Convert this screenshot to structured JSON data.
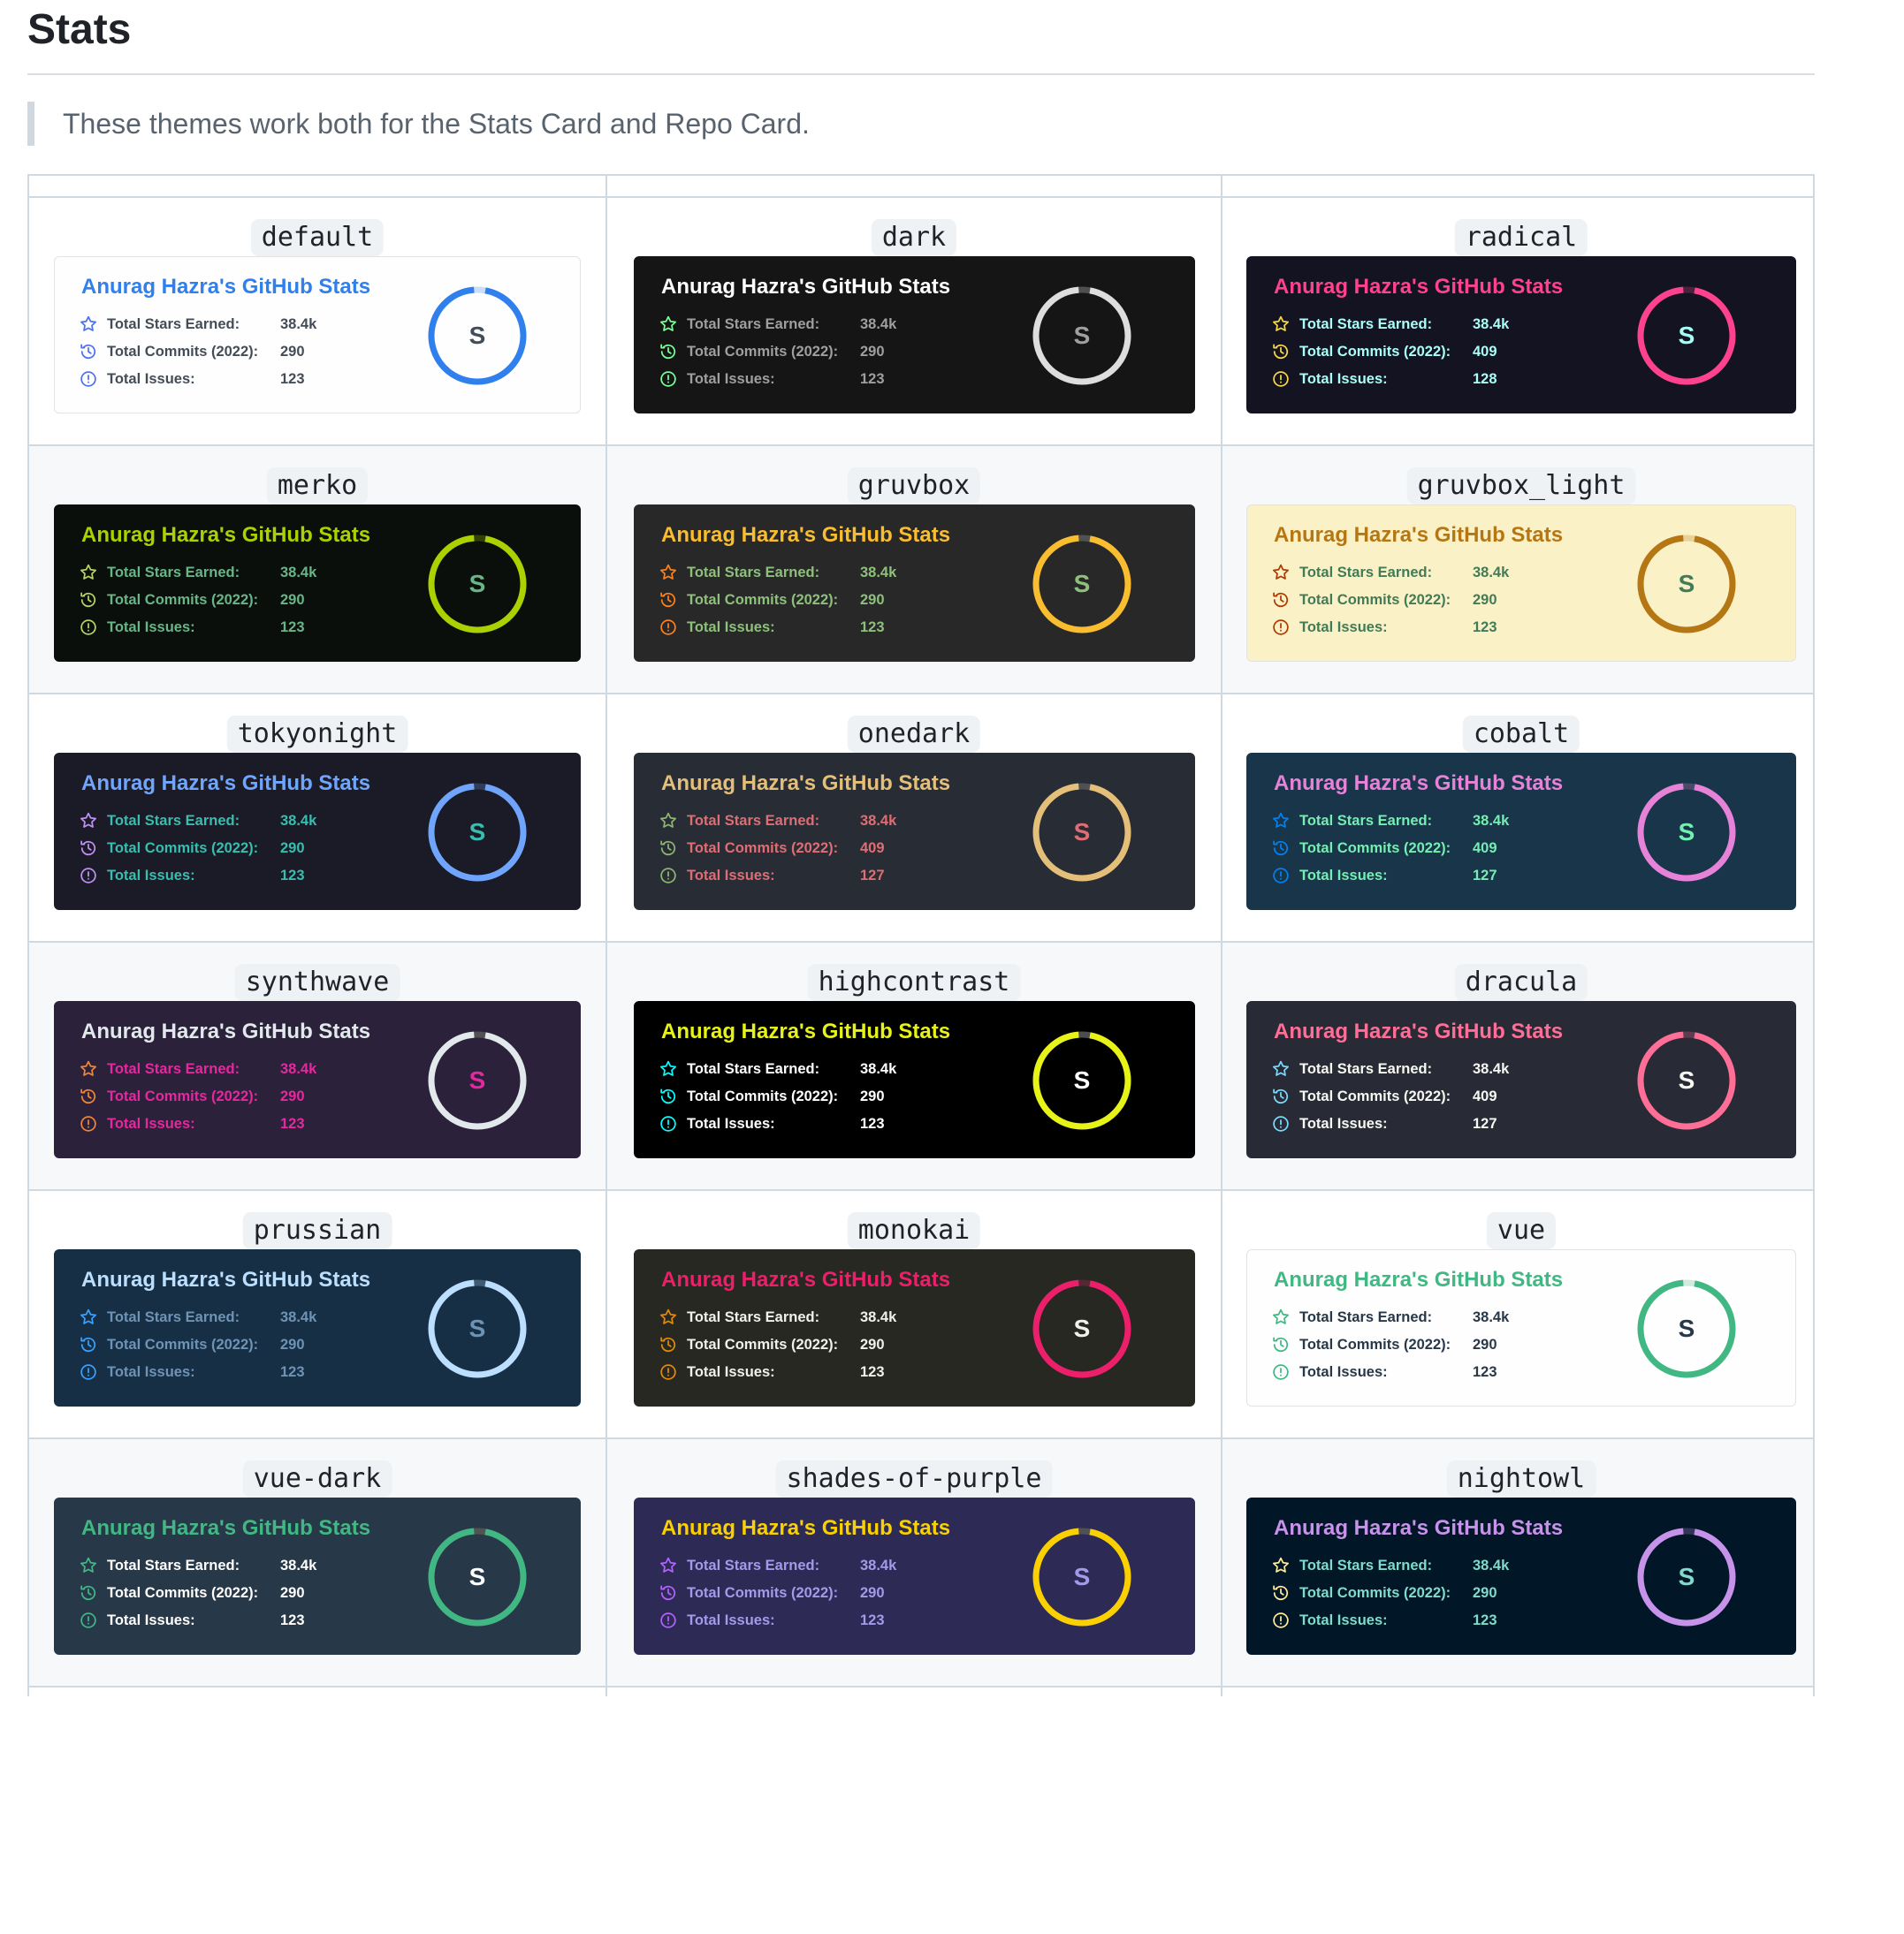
{
  "heading": "Stats",
  "note": "These themes work both for the Stats Card and Repo Card.",
  "card_title": "Anurag Hazra's GitHub Stats",
  "rank_letter": "S",
  "stat_labels": {
    "stars": "Total Stars Earned:",
    "commits": "Total Commits (2022):",
    "issues": "Total Issues:"
  },
  "themes": [
    {
      "name": "default",
      "bg": "#fffefe",
      "border": "#e4e2e2",
      "title": "#2f80ed",
      "text": "#434d58",
      "icon": "#4c71f2",
      "ring": "#2f80ed",
      "track": "#2f80ed",
      "rank": "#434d58",
      "stars": "38.4k",
      "commits": "290",
      "issues": "123"
    },
    {
      "name": "dark",
      "bg": "#151515",
      "border": "#151515",
      "title": "#ffffff",
      "text": "#9f9f9f",
      "icon": "#79ff97",
      "ring": "#dddddd",
      "track": "#555555",
      "rank": "#9f9f9f",
      "stars": "38.4k",
      "commits": "290",
      "issues": "123"
    },
    {
      "name": "radical",
      "bg": "#141321",
      "border": "#141321",
      "title": "#fe428e",
      "text": "#a9fef7",
      "icon": "#f8d847",
      "ring": "#fe428e",
      "track": "#fe428e",
      "rank": "#a9fef7",
      "stars": "38.4k",
      "commits": "409",
      "issues": "128"
    },
    {
      "name": "merko",
      "bg": "#0a0f0b",
      "border": "#0a0f0b",
      "title": "#abd200",
      "text": "#68b587",
      "icon": "#b7d364",
      "ring": "#abd200",
      "track": "#abd200",
      "rank": "#68b587",
      "stars": "38.4k",
      "commits": "290",
      "issues": "123"
    },
    {
      "name": "gruvbox",
      "bg": "#282828",
      "border": "#282828",
      "title": "#fabd2f",
      "text": "#8ec07c",
      "icon": "#fe8019",
      "ring": "#fabd2f",
      "track": "#555555",
      "rank": "#8ec07c",
      "stars": "38.4k",
      "commits": "290",
      "issues": "123"
    },
    {
      "name": "gruvbox_light",
      "bg": "#fbf1c7",
      "border": "#e4e2e2",
      "title": "#b57614",
      "text": "#427b58",
      "icon": "#af3a03",
      "ring": "#b57614",
      "track": "#b57614",
      "rank": "#427b58",
      "stars": "38.4k",
      "commits": "290",
      "issues": "123"
    },
    {
      "name": "tokyonight",
      "bg": "#1a1b27",
      "border": "#1a1b27",
      "title": "#70a5fd",
      "text": "#38bdae",
      "icon": "#bf91f3",
      "ring": "#70a5fd",
      "track": "#70a5fd",
      "rank": "#38bdae",
      "stars": "38.4k",
      "commits": "290",
      "issues": "123"
    },
    {
      "name": "onedark",
      "bg": "#282c34",
      "border": "#282c34",
      "title": "#e4bf7a",
      "text": "#df6d74",
      "icon": "#8eb573",
      "ring": "#e4bf7a",
      "track": "#555555",
      "rank": "#df6d74",
      "stars": "38.4k",
      "commits": "409",
      "issues": "127"
    },
    {
      "name": "cobalt",
      "bg": "#193549",
      "border": "#193549",
      "title": "#e683d9",
      "text": "#75eeb2",
      "icon": "#0480ef",
      "ring": "#e683d9",
      "track": "#e683d9",
      "rank": "#75eeb2",
      "stars": "38.4k",
      "commits": "409",
      "issues": "127"
    },
    {
      "name": "synthwave",
      "bg": "#2b213a",
      "border": "#2b213a",
      "title": "#e2e9ec",
      "text": "#e5289e",
      "icon": "#ef8539",
      "ring": "#e2e9ec",
      "track": "#555555",
      "rank": "#e5289e",
      "stars": "38.4k",
      "commits": "290",
      "issues": "123"
    },
    {
      "name": "highcontrast",
      "bg": "#000000",
      "border": "#000000",
      "title": "#e7f216",
      "text": "#ffffff",
      "icon": "#00ffff",
      "ring": "#e7f216",
      "track": "#555555",
      "rank": "#ffffff",
      "stars": "38.4k",
      "commits": "290",
      "issues": "123"
    },
    {
      "name": "dracula",
      "bg": "#282a36",
      "border": "#282a36",
      "title": "#ff6e96",
      "text": "#f8f8f2",
      "icon": "#79dafa",
      "ring": "#ff6e96",
      "track": "#ff6e96",
      "rank": "#f8f8f2",
      "stars": "38.4k",
      "commits": "409",
      "issues": "127"
    },
    {
      "name": "prussian",
      "bg": "#172f45",
      "border": "#172f45",
      "title": "#bddfff",
      "text": "#6e93b5",
      "icon": "#38a0ff",
      "ring": "#bddfff",
      "track": "#bddfff",
      "rank": "#6e93b5",
      "stars": "38.4k",
      "commits": "290",
      "issues": "123"
    },
    {
      "name": "monokai",
      "bg": "#272822",
      "border": "#272822",
      "title": "#eb1f6a",
      "text": "#f1f1eb",
      "icon": "#e28905",
      "ring": "#eb1f6a",
      "track": "#eb1f6a",
      "rank": "#f1f1eb",
      "stars": "38.4k",
      "commits": "290",
      "issues": "123"
    },
    {
      "name": "vue",
      "bg": "#fffefe",
      "border": "#e4e2e2",
      "title": "#41b883",
      "text": "#273849",
      "icon": "#41b883",
      "ring": "#41b883",
      "track": "#41b883",
      "rank": "#273849",
      "stars": "38.4k",
      "commits": "290",
      "issues": "123"
    },
    {
      "name": "vue-dark",
      "bg": "#273849",
      "border": "#273849",
      "title": "#41b883",
      "text": "#fffefe",
      "icon": "#41b883",
      "ring": "#41b883",
      "track": "#555555",
      "rank": "#fffefe",
      "stars": "38.4k",
      "commits": "290",
      "issues": "123"
    },
    {
      "name": "shades-of-purple",
      "bg": "#2d2b55",
      "border": "#2d2b55",
      "title": "#fad000",
      "text": "#a599e9",
      "icon": "#b362ff",
      "ring": "#fad000",
      "track": "#555555",
      "rank": "#a599e9",
      "stars": "38.4k",
      "commits": "290",
      "issues": "123"
    },
    {
      "name": "nightowl",
      "bg": "#011627",
      "border": "#011627",
      "title": "#c792ea",
      "text": "#7fdbca",
      "icon": "#ffeb95",
      "ring": "#c792ea",
      "track": "#c792ea",
      "rank": "#7fdbca",
      "stars": "38.4k",
      "commits": "290",
      "issues": "123"
    }
  ]
}
